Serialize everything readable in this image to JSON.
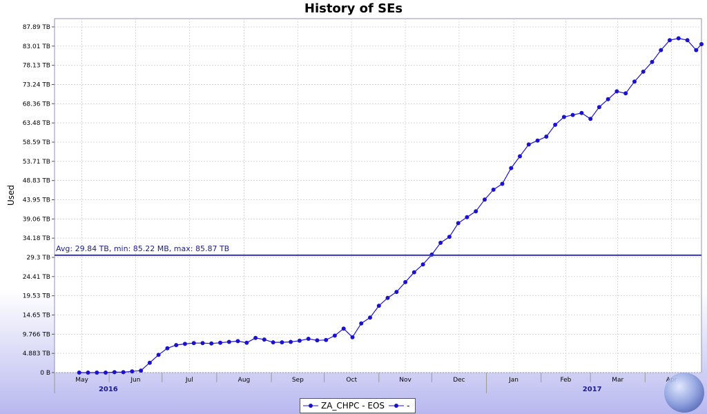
{
  "chart_data": {
    "type": "line",
    "title": "History of SEs",
    "ylabel": "Used",
    "xlabel": "",
    "ylim": [
      0,
      90
    ],
    "y_ticks": [
      "0 B",
      "4.883 TB",
      "9.766 TB",
      "14.65 TB",
      "19.53 TB",
      "24.41 TB",
      "29.3 TB",
      "34.18 TB",
      "39.06 TB",
      "43.95 TB",
      "48.83 TB",
      "53.71 TB",
      "58.59 TB",
      "63.48 TB",
      "68.36 TB",
      "73.24 TB",
      "78.13 TB",
      "83.01 TB",
      "87.89 TB"
    ],
    "months": [
      "May",
      "Jun",
      "Jul",
      "Aug",
      "Sep",
      "Oct",
      "Nov",
      "Dec",
      "Jan",
      "Feb",
      "Mar",
      "Apr"
    ],
    "years": [
      "2016",
      "2017"
    ],
    "annotation": "Avg: 29.84 TB, min: 85.22 MB, max: 85.87 TB",
    "avg_value": 29.84,
    "grid": true,
    "legend_position": "bottom-center",
    "legend": [
      "ZA_CHPC - EOS",
      "-"
    ],
    "series": [
      {
        "name": "ZA_CHPC - EOS",
        "color": "#1a12cc",
        "x": [
          "2016-05-15",
          "2016-05-20",
          "2016-05-25",
          "2016-05-30",
          "2016-06-04",
          "2016-06-09",
          "2016-06-14",
          "2016-06-19",
          "2016-06-24",
          "2016-06-29",
          "2016-07-04",
          "2016-07-09",
          "2016-07-14",
          "2016-07-19",
          "2016-07-24",
          "2016-07-29",
          "2016-08-03",
          "2016-08-08",
          "2016-08-13",
          "2016-08-18",
          "2016-08-23",
          "2016-08-28",
          "2016-09-02",
          "2016-09-07",
          "2016-09-12",
          "2016-09-17",
          "2016-09-22",
          "2016-09-27",
          "2016-10-02",
          "2016-10-07",
          "2016-10-12",
          "2016-10-17",
          "2016-10-22",
          "2016-10-27",
          "2016-11-01",
          "2016-11-06",
          "2016-11-11",
          "2016-11-16",
          "2016-11-21",
          "2016-11-26",
          "2016-12-01",
          "2016-12-06",
          "2016-12-11",
          "2016-12-16",
          "2016-12-21",
          "2016-12-26",
          "2016-12-31",
          "2017-01-05",
          "2017-01-10",
          "2017-01-15",
          "2017-01-20",
          "2017-01-25",
          "2017-01-30",
          "2017-02-04",
          "2017-02-09",
          "2017-02-14",
          "2017-02-19",
          "2017-02-24",
          "2017-03-01",
          "2017-03-06",
          "2017-03-11",
          "2017-03-16",
          "2017-03-21",
          "2017-03-26",
          "2017-03-31",
          "2017-04-05",
          "2017-04-10",
          "2017-04-15",
          "2017-04-20",
          "2017-04-25",
          "2017-04-30",
          "2017-05-03"
        ],
        "y": [
          0,
          0,
          0,
          0,
          0.1,
          0.1,
          0.3,
          0.5,
          2.5,
          4.5,
          6.2,
          7.0,
          7.3,
          7.5,
          7.5,
          7.4,
          7.6,
          7.8,
          8.0,
          7.6,
          8.8,
          8.4,
          7.7,
          7.7,
          7.8,
          8.1,
          8.6,
          8.2,
          8.3,
          9.4,
          11.2,
          9.0,
          12.5,
          14.0,
          17.0,
          19.0,
          20.5,
          23.0,
          25.5,
          27.5,
          30.0,
          33.0,
          34.5,
          38.0,
          39.5,
          41.0,
          44.0,
          46.5,
          48.0,
          52.0,
          55.0,
          58.0,
          59.0,
          60.0,
          63.0,
          65.0,
          65.5,
          66.0,
          64.5,
          67.5,
          69.5,
          71.5,
          71.0,
          74.0,
          76.5,
          79.0,
          82.0,
          84.5,
          85.0,
          84.5,
          82.0,
          83.5
        ]
      }
    ]
  }
}
